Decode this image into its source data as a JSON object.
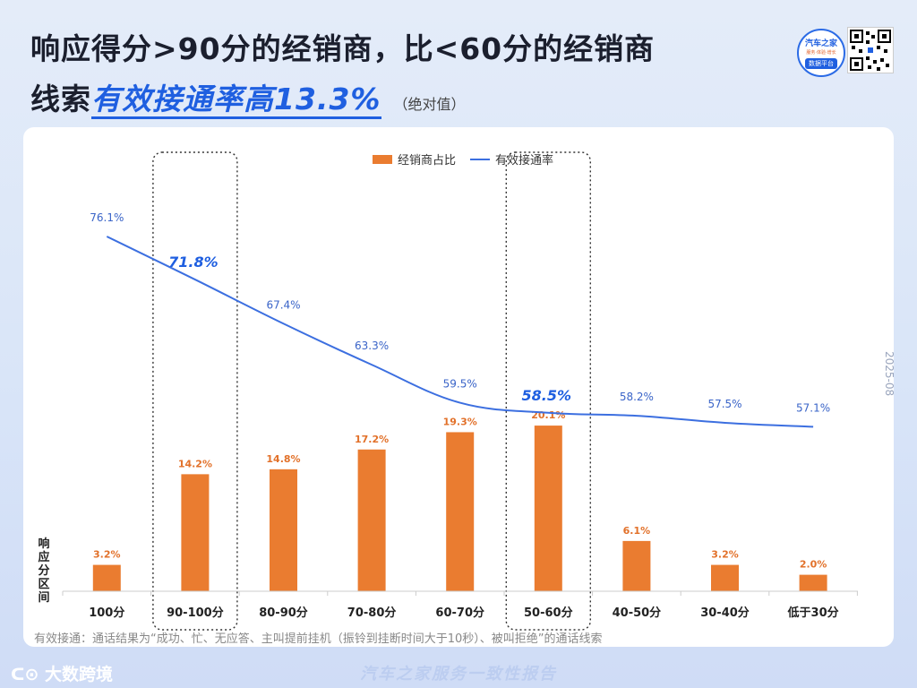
{
  "header": {
    "title_line1": "响应得分>90分的经销商，比<60分的经销商",
    "title_line2_prefix": "线索",
    "title_line2_highlight": "有效接通率高13.3%",
    "title_line2_note": "（绝对值）"
  },
  "logo": {
    "name": "汽车之家",
    "tagline": "服务·体验·增长",
    "sub": "数据平台"
  },
  "chart_data": {
    "type": "bar",
    "categories": [
      "100分",
      "90-100分",
      "80-90分",
      "70-80分",
      "60-70分",
      "50-60分",
      "40-50分",
      "30-40分",
      "低于30分"
    ],
    "series": [
      {
        "name": "经销商占比",
        "type": "bar",
        "values": [
          3.2,
          14.2,
          14.8,
          17.2,
          19.3,
          20.1,
          6.1,
          3.2,
          2.0
        ],
        "labels": [
          "3.2%",
          "14.2%",
          "14.8%",
          "17.2%",
          "19.3%",
          "20.1%",
          "6.1%",
          "3.2%",
          "2.0%"
        ],
        "color": "#ea7c30"
      },
      {
        "name": "有效接通率",
        "type": "line",
        "values": [
          76.1,
          71.8,
          67.4,
          63.3,
          59.5,
          58.5,
          58.2,
          57.5,
          57.1
        ],
        "labels": [
          "76.1%",
          "71.8%",
          "67.4%",
          "63.3%",
          "59.5%",
          "58.5%",
          "58.2%",
          "57.5%",
          "57.1%"
        ],
        "color": "#3c6fe0"
      }
    ],
    "highlighted_categories": [
      "90-100分",
      "50-60分"
    ],
    "xlabel": "响应分区间",
    "legend_position": "top-center",
    "grid": false
  },
  "footnote": "有效接通：通话结果为“成功、忙、无应答、主叫提前挂机（振铃到挂断时间大于10秒）、被叫拒绝”的通话线索",
  "date": "2025-08",
  "brand": "大数跨境",
  "bottom_text": "汽车之家服务一致性报告"
}
